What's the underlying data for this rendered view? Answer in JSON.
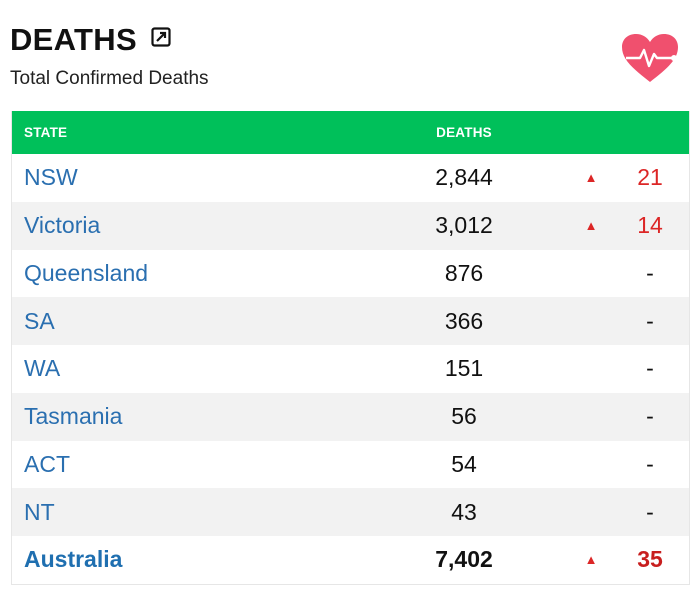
{
  "header": {
    "title": "DEATHS",
    "subtitle": "Total Confirmed Deaths"
  },
  "colors": {
    "header_bg": "#00c05a",
    "state_link": "#2a6fb0",
    "increase": "#dc2626",
    "heart": "#f0506e"
  },
  "icons": [
    "expand-icon",
    "heart-pulse-icon",
    "up-arrow-icon"
  ],
  "table": {
    "columns": [
      "STATE",
      "DEATHS",
      "",
      ""
    ],
    "rows": [
      {
        "state": "NSW",
        "deaths": "2,844",
        "arrow": "▲",
        "change": "21"
      },
      {
        "state": "Victoria",
        "deaths": "3,012",
        "arrow": "▲",
        "change": "14"
      },
      {
        "state": "Queensland",
        "deaths": "876",
        "arrow": "",
        "change": "-"
      },
      {
        "state": "SA",
        "deaths": "366",
        "arrow": "",
        "change": "-"
      },
      {
        "state": "WA",
        "deaths": "151",
        "arrow": "",
        "change": "-"
      },
      {
        "state": "Tasmania",
        "deaths": "56",
        "arrow": "",
        "change": "-"
      },
      {
        "state": "ACT",
        "deaths": "54",
        "arrow": "",
        "change": "-"
      },
      {
        "state": "NT",
        "deaths": "43",
        "arrow": "",
        "change": "-"
      }
    ],
    "total": {
      "state": "Australia",
      "deaths": "7,402",
      "arrow": "▲",
      "change": "35"
    }
  }
}
